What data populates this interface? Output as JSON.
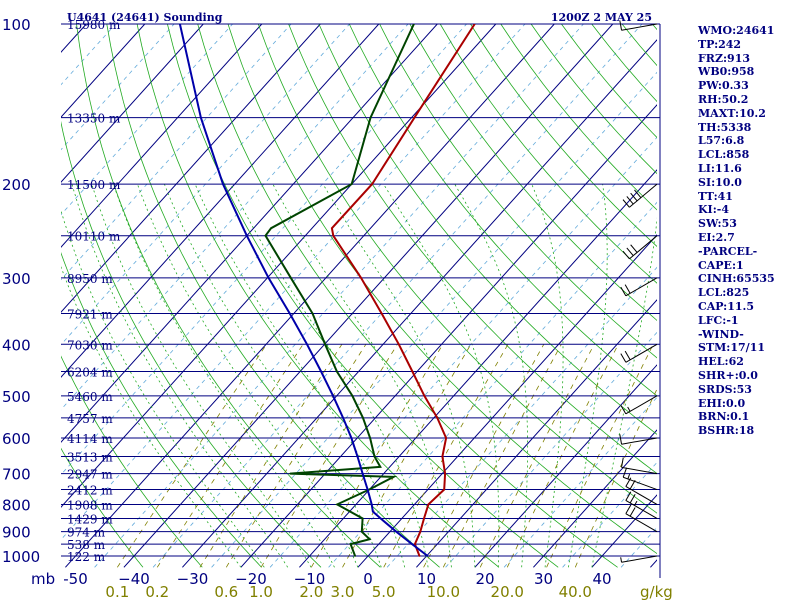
{
  "title": "U4641 (24641) Sounding",
  "time": "1200Z  2 MAY 25",
  "colors": {
    "isobar": "#000080",
    "isotherm": "#000080",
    "dry_adiabat": "#22aa22",
    "moist_adiabat": "#22aa22",
    "mixing_ratio": "#808000",
    "temperature": "#aa0000",
    "dewpoint": "#004400",
    "parcel": "#0000aa",
    "label": "#000080",
    "mixing_label": "#808000"
  },
  "side_panel": [
    "WMO:24641",
    "TP:242",
    "FRZ:913",
    "WB0:958",
    "PW:0.33",
    "RH:50.2",
    "MAXT:10.2",
    "TH:5338",
    "L57:6.8",
    "LCL:858",
    "LI:11.6",
    "SI:10.0",
    "TT:41",
    "KI:-4",
    "SW:53",
    "EI:2.7",
    "-PARCEL-",
    "CAPE:1",
    "CINH:65535",
    "LCL:825",
    "CAP:11.5",
    "LFC:-1",
    "-WIND-",
    "STM:17/11",
    "HEL:62",
    "SHR+:0.0",
    "SRDS:53",
    "EHI:0.0",
    "BRN:0.1",
    "BSHR:18"
  ],
  "chart_data": {
    "type": "line",
    "diagram": "skew-T log-P",
    "pressure_levels": [
      {
        "p": 100,
        "label": "100"
      },
      {
        "p": 200,
        "label": "200"
      },
      {
        "p": 300,
        "label": "300"
      },
      {
        "p": 400,
        "label": "400"
      },
      {
        "p": 500,
        "label": "500"
      },
      {
        "p": 600,
        "label": "600"
      },
      {
        "p": 700,
        "label": "700"
      },
      {
        "p": 800,
        "label": "800"
      },
      {
        "p": 900,
        "label": "900"
      },
      {
        "p": 1000,
        "label": "1000"
      }
    ],
    "pressure_unit_label": "mb",
    "height_labels": [
      {
        "p": 100,
        "label": "15980 m"
      },
      {
        "p": 150,
        "label": "13350 m"
      },
      {
        "p": 200,
        "label": "11500 m"
      },
      {
        "p": 250,
        "label": "10110 m"
      },
      {
        "p": 300,
        "label": "8950 m"
      },
      {
        "p": 350,
        "label": "7921 m"
      },
      {
        "p": 400,
        "label": "7030 m"
      },
      {
        "p": 450,
        "label": "6204 m"
      },
      {
        "p": 500,
        "label": "5460 m"
      },
      {
        "p": 550,
        "label": "4757 m"
      },
      {
        "p": 600,
        "label": "4114 m"
      },
      {
        "p": 650,
        "label": "3513 m"
      },
      {
        "p": 700,
        "label": "2947 m"
      },
      {
        "p": 750,
        "label": "2412 m"
      },
      {
        "p": 800,
        "label": "1908 m"
      },
      {
        "p": 850,
        "label": "1429 m"
      },
      {
        "p": 900,
        "label": "974 m"
      },
      {
        "p": 950,
        "label": "538 m"
      },
      {
        "p": 1000,
        "label": "122 m"
      }
    ],
    "temperature_ticks": [
      {
        "t": -50,
        "label": "-50"
      },
      {
        "t": -40,
        "label": "−40"
      },
      {
        "t": -30,
        "label": "−30"
      },
      {
        "t": -20,
        "label": "−20"
      },
      {
        "t": -10,
        "label": "−10"
      },
      {
        "t": 0,
        "label": "0"
      },
      {
        "t": 10,
        "label": "10"
      },
      {
        "t": 20,
        "label": "20"
      },
      {
        "t": 30,
        "label": "30"
      },
      {
        "t": 40,
        "label": "40"
      }
    ],
    "temperature_range": [
      -50,
      50
    ],
    "pressure_range": [
      1050,
      100
    ],
    "mixing_ratio_labels": [
      {
        "w": 0.1,
        "label": "0.1"
      },
      {
        "w": 0.2,
        "label": "0.2"
      },
      {
        "w": 0.6,
        "label": "0.6"
      },
      {
        "w": 1.0,
        "label": "1.0"
      },
      {
        "w": 2.0,
        "label": "2.0"
      },
      {
        "w": 3.0,
        "label": "3.0"
      },
      {
        "w": 5.0,
        "label": "5.0"
      },
      {
        "w": 10.0,
        "label": "10.0"
      },
      {
        "w": 20.0,
        "label": "20.0"
      },
      {
        "w": 40.0,
        "label": "40.0"
      }
    ],
    "mixing_ratio_unit": "g/kg",
    "series": [
      {
        "key": "temperature",
        "points": [
          [
            1000,
            8.8
          ],
          [
            950,
            6.2
          ],
          [
            900,
            5.2
          ],
          [
            850,
            3.8
          ],
          [
            800,
            2.4
          ],
          [
            750,
            2.8
          ],
          [
            700,
            0.5
          ],
          [
            650,
            -2.6
          ],
          [
            600,
            -4.8
          ],
          [
            550,
            -9.4
          ],
          [
            500,
            -15.0
          ],
          [
            450,
            -20.8
          ],
          [
            400,
            -27.3
          ],
          [
            350,
            -35.0
          ],
          [
            300,
            -44.0
          ],
          [
            250,
            -55.2
          ],
          [
            242,
            -56.6
          ],
          [
            200,
            -56.5
          ],
          [
            150,
            -59.5
          ],
          [
            100,
            -63.6
          ]
        ]
      },
      {
        "key": "dewpoint",
        "points": [
          [
            1000,
            -2.2
          ],
          [
            950,
            -4.8
          ],
          [
            930,
            -2.3
          ],
          [
            900,
            -4.8
          ],
          [
            850,
            -6.7
          ],
          [
            800,
            -13.2
          ],
          [
            750,
            -10.0
          ],
          [
            710,
            -7.8
          ],
          [
            700,
            -26.0
          ],
          [
            680,
            -11.6
          ],
          [
            650,
            -14.2
          ],
          [
            600,
            -17.8
          ],
          [
            550,
            -22.1
          ],
          [
            500,
            -27.3
          ],
          [
            450,
            -33.7
          ],
          [
            400,
            -39.9
          ],
          [
            350,
            -46.8
          ],
          [
            300,
            -56.0
          ],
          [
            250,
            -66.8
          ],
          [
            242,
            -67.0
          ],
          [
            200,
            -60.0
          ],
          [
            150,
            -67.0
          ],
          [
            100,
            -74.0
          ]
        ]
      },
      {
        "key": "parcel",
        "points": [
          [
            1000,
            10.2
          ],
          [
            950,
            5.7
          ],
          [
            900,
            1.1
          ],
          [
            850,
            -3.6
          ],
          [
            825,
            -6.0
          ],
          [
            800,
            -7.3
          ],
          [
            750,
            -10.3
          ],
          [
            700,
            -13.6
          ],
          [
            650,
            -17.1
          ],
          [
            600,
            -21.0
          ],
          [
            550,
            -25.5
          ],
          [
            500,
            -30.6
          ],
          [
            450,
            -36.4
          ],
          [
            400,
            -43.0
          ],
          [
            350,
            -50.7
          ],
          [
            300,
            -59.8
          ],
          [
            250,
            -70.0
          ],
          [
            200,
            -82.0
          ],
          [
            150,
            -96.0
          ],
          [
            100,
            -114.0
          ]
        ]
      }
    ],
    "wind_barbs": [
      {
        "p": 1000,
        "dir": 260,
        "spd": 5
      },
      {
        "p": 900,
        "dir": 300,
        "spd": 20
      },
      {
        "p": 850,
        "dir": 300,
        "spd": 25
      },
      {
        "p": 800,
        "dir": 300,
        "spd": 20
      },
      {
        "p": 750,
        "dir": 290,
        "spd": 15
      },
      {
        "p": 700,
        "dir": 280,
        "spd": 10
      },
      {
        "p": 600,
        "dir": 260,
        "spd": 10
      },
      {
        "p": 500,
        "dir": 240,
        "spd": 15
      },
      {
        "p": 400,
        "dir": 240,
        "spd": 20
      },
      {
        "p": 300,
        "dir": 240,
        "spd": 20
      },
      {
        "p": 250,
        "dir": 230,
        "spd": 30
      },
      {
        "p": 200,
        "dir": 230,
        "spd": 40
      },
      {
        "p": 100,
        "dir": 260,
        "spd": 10
      }
    ]
  }
}
